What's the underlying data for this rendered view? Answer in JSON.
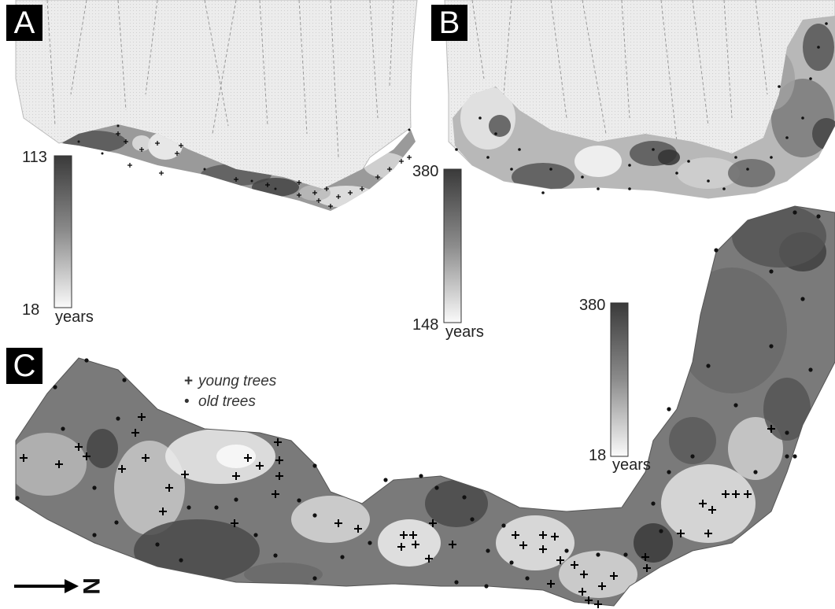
{
  "panels": {
    "a": {
      "label": "A",
      "scale": {
        "max": "113",
        "min": "18",
        "unit": "years"
      }
    },
    "b": {
      "label": "B",
      "scale": {
        "max": "380",
        "min": "148",
        "unit": "years"
      }
    },
    "c": {
      "label": "C",
      "scale": {
        "max": "380",
        "min": "18",
        "unit": "years"
      }
    }
  },
  "legend": {
    "young": {
      "symbol": "+",
      "label": "young trees"
    },
    "old": {
      "symbol": "•",
      "label": "old trees"
    }
  },
  "north_arrow": {
    "letter": "N",
    "icon": "north-arrow-icon"
  },
  "colors": {
    "dark": "#3a3a3a",
    "mid": "#8a8a8a",
    "light": "#f4f4f4",
    "ink": "#000000"
  }
}
